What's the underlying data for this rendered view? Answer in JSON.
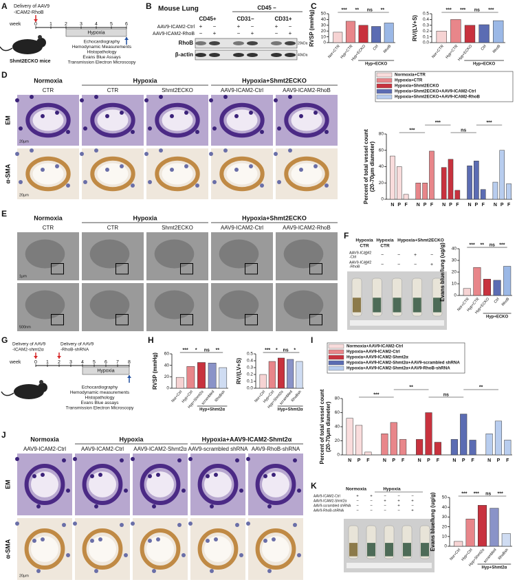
{
  "panel_labels": [
    "A",
    "B",
    "C",
    "D",
    "E",
    "F",
    "G",
    "H",
    "I",
    "J",
    "K"
  ],
  "A": {
    "delivery": [
      "Delivery of AAV9",
      "-ICAM2-RhoB"
    ],
    "week": "week",
    "weeks": [
      0,
      1,
      2,
      3,
      4,
      5,
      6
    ],
    "phase": "Hypoxia",
    "mice": "Shmt2ECKO mice",
    "assays": [
      "Echocardiography",
      "Hemodynamic Measurements",
      "Histopathology",
      "Evans Blue Assays",
      "Transmission Electron Microscopy"
    ]
  },
  "B": {
    "title": "Mouse Lung",
    "group": "CD45 −",
    "lanes": [
      "CD45+",
      "CD31−",
      "CD31+"
    ],
    "rows": [
      {
        "label": "AAV9-ICAM2-Ctrl",
        "signs": [
          "+",
          "−",
          "+",
          "−",
          "+",
          "−"
        ]
      },
      {
        "label": "AAV9-ICAM2-RhoB",
        "signs": [
          "−",
          "+",
          "−",
          "+",
          "−",
          "+"
        ]
      }
    ],
    "blots": [
      {
        "label": "RhoB",
        "size": "20kDa"
      },
      {
        "label": "β-actin",
        "size": "40kDa"
      }
    ]
  },
  "D": {
    "groups": [
      "Normoxia",
      "Hypoxia",
      "Hypoxia+Shmt2ECKO"
    ],
    "columns": [
      "CTR",
      "CTR",
      "Shmt2ECKO",
      "AAV9-ICAM2-Ctrl",
      "AAV9-ICAM2-RhoB"
    ],
    "rows": [
      "EM",
      "α-SMA"
    ],
    "scale": [
      "20μm",
      "20μm"
    ]
  },
  "E": {
    "groups": [
      "Normoxia",
      "Hypoxia",
      "Hypoxia+Shmt2ECKO"
    ],
    "columns": [
      "CTR",
      "CTR",
      "Shmt2ECKO",
      "AAV9-ICAM2-Ctrl",
      "AAV9-ICAM2-RhoB"
    ],
    "scale": [
      "1μm",
      "500nm"
    ]
  },
  "F": {
    "groups": [
      "Hypoxia",
      "Hypoxia",
      "Hypoxia+Shmt2ECKO"
    ],
    "subgroups": [
      "CTR",
      "CTR"
    ],
    "rows": [
      {
        "label": [
          "AAV9-ICAM2",
          "-Ctrl"
        ],
        "signs": [
          "−",
          "−",
          "−",
          "+",
          "−"
        ]
      },
      {
        "label": [
          "AAV9-ICAM2",
          "-RhoB"
        ],
        "signs": [
          "−",
          "−",
          "−",
          "−",
          "+"
        ]
      }
    ]
  },
  "G": {
    "deliveries": [
      [
        "Delivery of AAV9",
        "-ICAM2-shmt2α"
      ],
      [
        "Delivery of AAV9",
        "-RhoB-shRNA"
      ]
    ],
    "week": "week",
    "weeks": [
      0,
      1,
      2,
      3,
      4,
      5,
      6,
      7,
      8
    ],
    "phase": "Hypoxia",
    "assays": [
      "Echocardiography",
      "Hemodynamic measurements",
      "Histopathology",
      "Evans Blue assays",
      "Transmission Electron Microscopy"
    ]
  },
  "J": {
    "groups": [
      "Normoxia",
      "Hypoxia",
      "Hypoxia+AAV9-ICAM2-Shmt2α"
    ],
    "columns": [
      "AAV9-ICAM2-Ctrl",
      "AAV9-ICAM2-Ctrl",
      "AAV9-ICAM2-Shmt2α",
      "AAV9-scrambled shRNA",
      "AAV9-RhoB-shRNA"
    ],
    "rows": [
      "EM",
      "α-SMA"
    ],
    "scale": [
      "20μm"
    ]
  },
  "K": {
    "groups": [
      "Normoxia",
      "Hypoxia"
    ],
    "rows": [
      {
        "label": "AAV9-ICAM2-Ctrl",
        "signs": [
          "+",
          "+",
          "−",
          "−",
          "−"
        ]
      },
      {
        "label": "AAV9-ICAM2-Shmt2α",
        "signs": [
          "−",
          "−",
          "+",
          "+",
          "+"
        ]
      },
      {
        "label": "AAV9-scrambled shRNA",
        "signs": [
          "−",
          "−",
          "−",
          "+",
          "−"
        ]
      },
      {
        "label": "AAV9-RhoB-shRNA",
        "signs": [
          "−",
          "−",
          "−",
          "−",
          "+"
        ]
      }
    ]
  },
  "chart_data": [
    {
      "type": "bar",
      "ylabel": [
        "RVSP (mmHg)"
      ],
      "categories": [
        "Nor+CTR",
        "Hyp+CTR",
        "Hyp+ECKO",
        "Ctrl",
        "RhoB"
      ],
      "values": [
        18,
        37,
        30,
        28,
        34
      ],
      "colors": [
        "#f6d3d3",
        "#e8868a",
        "#c8323e",
        "#5b6cb3",
        "#9bb8e6"
      ],
      "ylim": [
        0,
        50
      ],
      "yticks": [
        0,
        10,
        20,
        30,
        40,
        50
      ],
      "significance": [
        "***",
        "**",
        "ns",
        "**"
      ],
      "group_label": "Hyp+ECKO"
    },
    {
      "type": "bar",
      "ylabel": [
        "RV/(LV+S)"
      ],
      "categories": [
        "Nor+CTR",
        "Hyp+CTR",
        "Hyp+ECKO",
        "Ctrl",
        "RhoB"
      ],
      "values": [
        0.2,
        0.4,
        0.3,
        0.31,
        0.38
      ],
      "colors": [
        "#f6d3d3",
        "#e8868a",
        "#c8323e",
        "#5b6cb3",
        "#9bb8e6"
      ],
      "ylim": [
        0,
        0.5
      ],
      "yticks": [
        {
          "value": 0,
          "label": "0.0"
        },
        0.1,
        0.2,
        0.3,
        0.4,
        0.5
      ],
      "significance": [
        "***",
        "***",
        "ns",
        "***"
      ],
      "group_label": "Hyp+ECKO"
    },
    {
      "type": "bar",
      "ylabel": [
        "Percent of total vessel count",
        "(20-70μm diameter)"
      ],
      "categories": [
        "N",
        "P",
        "F",
        "N",
        "P",
        "F",
        "N",
        "P",
        "F",
        "N",
        "P",
        "F",
        "N",
        "P",
        "F"
      ],
      "values": [
        53,
        40,
        6,
        20,
        20,
        59,
        39,
        49,
        11,
        41,
        47,
        12,
        21,
        60,
        19
      ],
      "colors": [
        "#f9dcdc",
        "#f9dcdc",
        "#f9dcdc",
        "#e8868a",
        "#e8868a",
        "#e8868a",
        "#c8323e",
        "#c8323e",
        "#c8323e",
        "#5b6cb3",
        "#5b6cb3",
        "#5b6cb3",
        "#b8cdef",
        "#b8cdef",
        "#b8cdef"
      ],
      "ylim": [
        0,
        80
      ],
      "yticks": [
        0,
        20,
        40,
        60,
        80
      ],
      "significance": [
        "***",
        "***",
        "ns",
        "***"
      ],
      "legend": [
        "Normoxia+CTR",
        "Hypoxia+CTR",
        "Hypoxia+Shmt2ECKO",
        "Hypoxia+Shmt2ECKO+AAV9-ICAM2-Ctrl",
        "Hypoxia+Shmt2ECKO+AAV9-ICAM2-RhoB"
      ],
      "legend_colors": [
        "#f9dcdc",
        "#e8868a",
        "#c8323e",
        "#5b6cb3",
        "#b8cdef"
      ]
    },
    {
      "type": "bar",
      "ylabel": [
        "Evans blue/lung (ug/g)"
      ],
      "categories": [
        "Nor+CTR",
        "Hyp+CTR",
        "Hyp+ECKO",
        "Ctrl",
        "RhoB"
      ],
      "values": [
        6,
        24,
        14,
        13,
        25
      ],
      "colors": [
        "#f6d3d3",
        "#e8868a",
        "#c8323e",
        "#5b6cb3",
        "#9bb8e6"
      ],
      "ylim": [
        0,
        40
      ],
      "yticks": [
        0,
        10,
        20,
        30,
        40
      ],
      "significance": [
        "***",
        "**",
        "ns",
        "***"
      ],
      "group_label": "Hyp+ECKO"
    },
    {
      "type": "bar",
      "ylabel": [
        "RVSP (mmHg)"
      ],
      "categories": [
        "Nor+Ctrl",
        "Hyp+Ctrl",
        "Hyp+Shmt2α",
        "scrambled",
        "RhoBsh"
      ],
      "values": [
        19,
        38,
        45,
        44,
        36
      ],
      "colors": [
        "#f6d3d3",
        "#e8868a",
        "#c8323e",
        "#8a93c8",
        "#cfdcf2"
      ],
      "ylim": [
        0,
        60
      ],
      "yticks": [
        0,
        20,
        40,
        60
      ],
      "significance": [
        "***",
        "*",
        "ns",
        "**"
      ],
      "group_label": "Hyp+Shmt2α"
    },
    {
      "type": "bar",
      "ylabel": [
        "RV/(LV+S)"
      ],
      "categories": [
        "Nor+Ctrl",
        "Hyp+Ctrl",
        "Hyp+Shmt2α",
        "scrambled",
        "RhoBsh"
      ],
      "values": [
        0.2,
        0.39,
        0.44,
        0.42,
        0.39
      ],
      "colors": [
        "#f6d3d3",
        "#e8868a",
        "#c8323e",
        "#8a93c8",
        "#cfdcf2"
      ],
      "ylim": [
        0,
        0.5
      ],
      "yticks": [
        {
          "value": 0,
          "label": "0.0"
        },
        0.1,
        0.2,
        0.3,
        0.4,
        0.5
      ],
      "significance": [
        "***",
        "*",
        "ns",
        "*"
      ],
      "group_label": "Hyp+Shmt2α"
    },
    {
      "type": "bar",
      "ylabel": [
        "Percent of total vessel count",
        "(20-70μm diameter)"
      ],
      "categories": [
        "N",
        "P",
        "F",
        "N",
        "P",
        "F",
        "N",
        "P",
        "F",
        "N",
        "P",
        "F",
        "N",
        "P",
        "F"
      ],
      "values": [
        52,
        42,
        4,
        30,
        46,
        22,
        22,
        60,
        18,
        22,
        58,
        21,
        30,
        48,
        21
      ],
      "colors": [
        "#f9dcdc",
        "#f9dcdc",
        "#f9dcdc",
        "#e8868a",
        "#e8868a",
        "#e8868a",
        "#c8323e",
        "#c8323e",
        "#c8323e",
        "#5b6cb3",
        "#5b6cb3",
        "#5b6cb3",
        "#b8cdef",
        "#b8cdef",
        "#b8cdef"
      ],
      "ylim": [
        0,
        80
      ],
      "yticks": [
        0,
        20,
        40,
        60,
        80
      ],
      "significance": [
        "***",
        "**",
        "ns",
        "**"
      ],
      "legend": [
        "Normoxia+AAV9-ICAM2-Ctrl",
        "Hypoxia+AAV9-ICAM2-Ctrl",
        "Hypoxia+AAV9-ICAM2-Shmt2α",
        "Hypoxia+AAV9-ICAM2-Shmt2α+AAV9-scrambled shRNA",
        "Hypoxia+AAV9-ICAM2-Shmt2α+AAV9-RhoB-shRNA"
      ],
      "legend_colors": [
        "#f9dcdc",
        "#e8868a",
        "#c8323e",
        "#5b6cb3",
        "#b8cdef"
      ]
    },
    {
      "type": "bar",
      "ylabel": [
        "Evans blue/lung (ug/g)"
      ],
      "categories": [
        "Nor+Ctrl",
        "Hyp+Ctrl",
        "Hyp+Shmt2α",
        "scrambled",
        "RhoBsh"
      ],
      "values": [
        5,
        28,
        42,
        39,
        13
      ],
      "colors": [
        "#f6d3d3",
        "#e8868a",
        "#c8323e",
        "#8a93c8",
        "#cfdcf2"
      ],
      "ylim": [
        0,
        50
      ],
      "yticks": [
        0,
        10,
        20,
        30,
        40,
        50
      ],
      "significance": [
        "***",
        "***",
        "ns",
        "***"
      ],
      "group_label": "Hyp+Shmt2α"
    }
  ]
}
